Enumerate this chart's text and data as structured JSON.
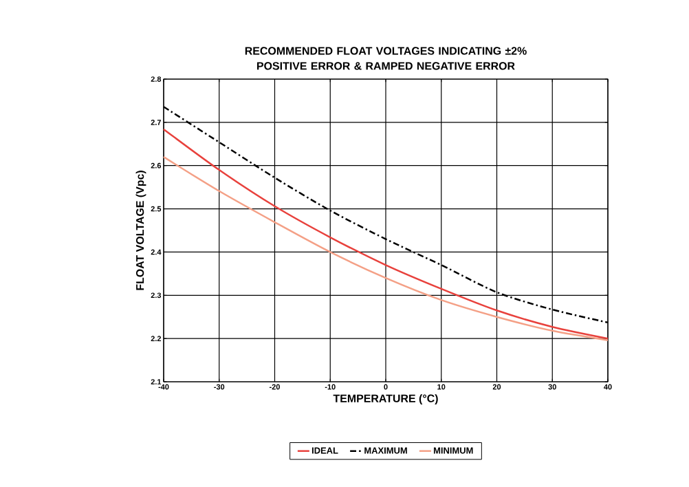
{
  "chart_data": {
    "type": "line",
    "title": "RECOMMENDED FLOAT VOLTAGES INDICATING ±2% POSITIVE ERROR & RAMPED NEGATIVE ERROR",
    "xlabel": "TEMPERATURE (°C)",
    "ylabel": "FLOAT VOLTAGE (Vpc)",
    "x": [
      -40,
      -30,
      -20,
      -10,
      0,
      10,
      20,
      30,
      40
    ],
    "series": [
      {
        "name": "IDEAL",
        "color": "#e8413c",
        "line_style": "solid",
        "values": [
          2.684,
          2.59,
          2.506,
          2.434,
          2.37,
          2.315,
          2.265,
          2.227,
          2.2
        ]
      },
      {
        "name": "MAXIMUM",
        "color": "#000000",
        "line_style": "dashed",
        "values": [
          2.736,
          2.654,
          2.572,
          2.496,
          2.43,
          2.37,
          2.307,
          2.267,
          2.237
        ]
      },
      {
        "name": "MINIMUM",
        "color": "#f4a086",
        "line_style": "solid",
        "values": [
          2.62,
          2.541,
          2.469,
          2.4,
          2.34,
          2.289,
          2.25,
          2.218,
          2.196
        ]
      }
    ],
    "xlim": [
      -40,
      40
    ],
    "ylim": [
      2.1,
      2.8
    ],
    "xticks": [
      -40,
      -30,
      -20,
      -10,
      0,
      10,
      20,
      30,
      40
    ],
    "yticks": [
      2.1,
      2.2,
      2.3,
      2.4,
      2.5,
      2.6,
      2.7,
      2.8
    ],
    "grid": true,
    "legend": "bottom",
    "marker": "none"
  }
}
